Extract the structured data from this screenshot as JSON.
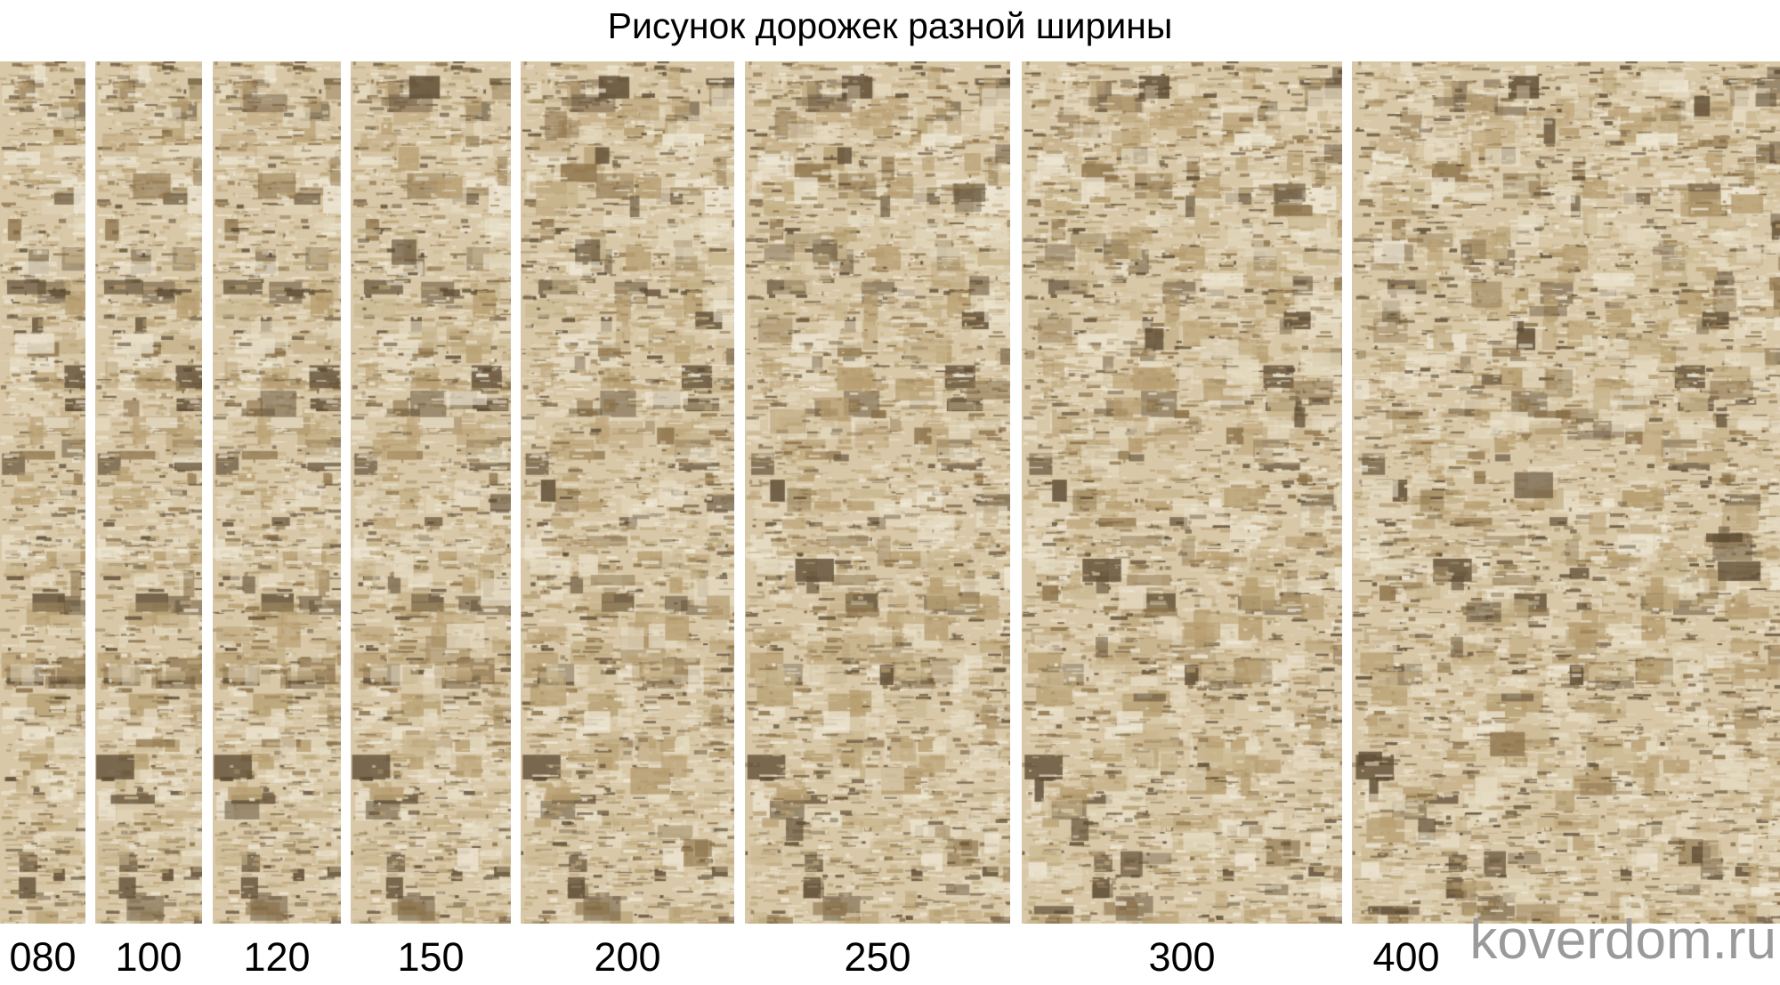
{
  "title": "Рисунок дорожек разной ширины",
  "runners": [
    {
      "label": "080"
    },
    {
      "label": "100"
    },
    {
      "label": "120"
    },
    {
      "label": "150"
    },
    {
      "label": "200"
    },
    {
      "label": "250"
    },
    {
      "label": "300"
    },
    {
      "label": "400"
    }
  ],
  "watermark": "koverdom.ru",
  "colors": {
    "base": "#d8c8a8",
    "light": "#e6dcc4",
    "mid": "#b89f72",
    "dark": "#8a7048",
    "darkest": "#5e4c34"
  }
}
